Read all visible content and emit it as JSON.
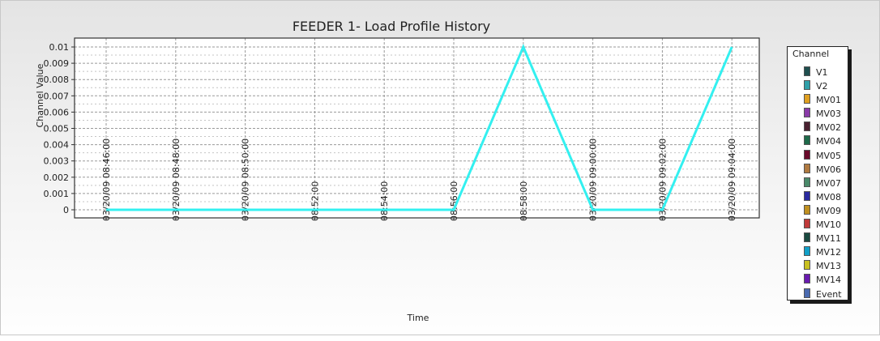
{
  "chart_data": {
    "type": "line",
    "title": "FEEDER 1- Load Profile History",
    "xlabel": "Time",
    "ylabel": "Channel Value",
    "ylim": [
      0,
      0.01
    ],
    "y_ticks": [
      "0.01",
      "0.009",
      "0.008",
      "0.007",
      "0.006",
      "0.005",
      "0.004",
      "0.003",
      "0.002",
      "0.001",
      "0"
    ],
    "x_tick_labels": [
      "03/20/09 08:46:00",
      "03/20/09 08:48:00",
      "03/20/09 08:50:00",
      "08:52:00",
      "08:54:00",
      "08:56:00",
      "08:58:00",
      "03/20/09 09:00:00",
      "03/20/09 09:02:00",
      "03/20/09 09:04:00"
    ],
    "series": [
      {
        "color": "#33f0f0",
        "x": [
          "03/20/09 08:46:00",
          "03/20/09 08:48:00",
          "03/20/09 08:50:00",
          "03/20/09 08:52:00",
          "03/20/09 08:54:00",
          "03/20/09 08:56:00",
          "03/20/09 08:58:00",
          "03/20/09 09:00:00",
          "03/20/09 09:02:00",
          "03/20/09 09:04:00"
        ],
        "values": [
          0,
          0,
          0,
          0,
          0,
          0,
          0.01,
          0,
          0,
          0.01
        ]
      }
    ],
    "grid": true,
    "legend_position": "right",
    "legend": {
      "title": "Channel",
      "items": [
        {
          "name": "V1",
          "color": "#1f4f4f"
        },
        {
          "name": "V2",
          "color": "#2f9fa8"
        },
        {
          "name": "MV01",
          "color": "#e0a020"
        },
        {
          "name": "MV03",
          "color": "#8a3aa8"
        },
        {
          "name": "MV02",
          "color": "#4a2030"
        },
        {
          "name": "MV04",
          "color": "#1e6a4a"
        },
        {
          "name": "MV05",
          "color": "#6a0a2a"
        },
        {
          "name": "MV06",
          "color": "#b07a40"
        },
        {
          "name": "MV07",
          "color": "#4a8a6a"
        },
        {
          "name": "MV08",
          "color": "#2a2aa0"
        },
        {
          "name": "MV09",
          "color": "#c09020"
        },
        {
          "name": "MV10",
          "color": "#c03a3a"
        },
        {
          "name": "MV11",
          "color": "#1a4a40"
        },
        {
          "name": "MV12",
          "color": "#10a0c8"
        },
        {
          "name": "MV13",
          "color": "#c8c020"
        },
        {
          "name": "MV14",
          "color": "#6a1ab0"
        },
        {
          "name": "Event",
          "color": "#4a6ab0"
        }
      ]
    }
  }
}
